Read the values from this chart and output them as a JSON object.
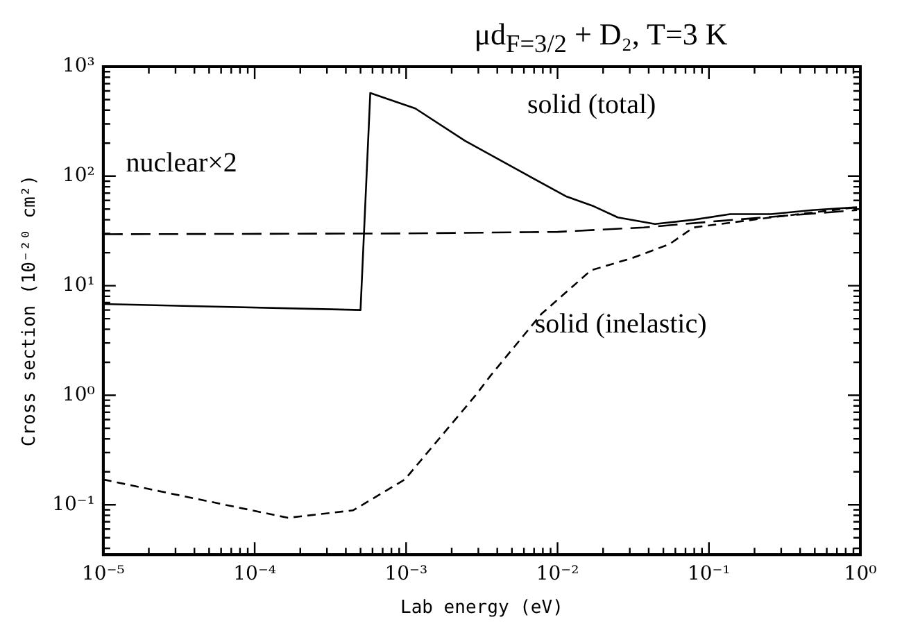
{
  "chart_data": {
    "type": "line",
    "title": "μd$_{F=3/2}$ + D₂, T=3 K",
    "xlabel": "Lab energy (eV)",
    "ylabel": "Cross section (10⁻²⁰ cm²)",
    "log": "xy",
    "grid": false,
    "marker": "none",
    "xlim": [
      1e-05,
      1
    ],
    "ylim": [
      0.035,
      1000
    ],
    "xticks": [
      {
        "value": 1e-05,
        "label": "10⁻⁵"
      },
      {
        "value": 0.0001,
        "label": "10⁻⁴"
      },
      {
        "value": 0.001,
        "label": "10⁻³"
      },
      {
        "value": 0.01,
        "label": "10⁻²"
      },
      {
        "value": 0.1,
        "label": "10⁻¹"
      },
      {
        "value": 1,
        "label": "10⁰"
      }
    ],
    "yticks": [
      {
        "value": 0.1,
        "label": "10⁻¹"
      },
      {
        "value": 1,
        "label": "10⁰"
      },
      {
        "value": 10,
        "label": "10¹"
      },
      {
        "value": 100,
        "label": "10²"
      },
      {
        "value": 1000,
        "label": "10³"
      }
    ],
    "series": [
      {
        "name": "solid (total)",
        "color": "#000000",
        "line_style": "solid",
        "x": [
          1e-05,
          0.0005,
          0.00058,
          0.00115,
          0.00245,
          0.0054,
          0.0115,
          0.0174,
          0.025,
          0.044,
          0.079,
          0.138,
          0.257,
          0.48,
          0.95
        ],
        "values": [
          6.8,
          6.0,
          575,
          415,
          210,
          115,
          65,
          53,
          42,
          36.6,
          40,
          45,
          45,
          49,
          52
        ]
      },
      {
        "name": "nuclear×2",
        "color": "#000000",
        "line_style": "dashed",
        "x": [
          1e-05,
          0.001,
          0.01,
          0.037,
          0.117,
          0.95
        ],
        "values": [
          29.5,
          30,
          31,
          34,
          39,
          49
        ]
      },
      {
        "name": "solid (inelastic)",
        "color": "#000000",
        "line_style": "dashed",
        "x": [
          1e-05,
          0.000166,
          0.000447,
          0.00098,
          0.00288,
          0.0036,
          0.0078,
          0.0138,
          0.0166,
          0.0316,
          0.055,
          0.079,
          0.257,
          0.95
        ],
        "values": [
          0.17,
          0.076,
          0.089,
          0.17,
          1.0,
          1.5,
          5.5,
          11,
          13.8,
          18,
          24,
          34,
          42,
          52
        ]
      }
    ]
  }
}
